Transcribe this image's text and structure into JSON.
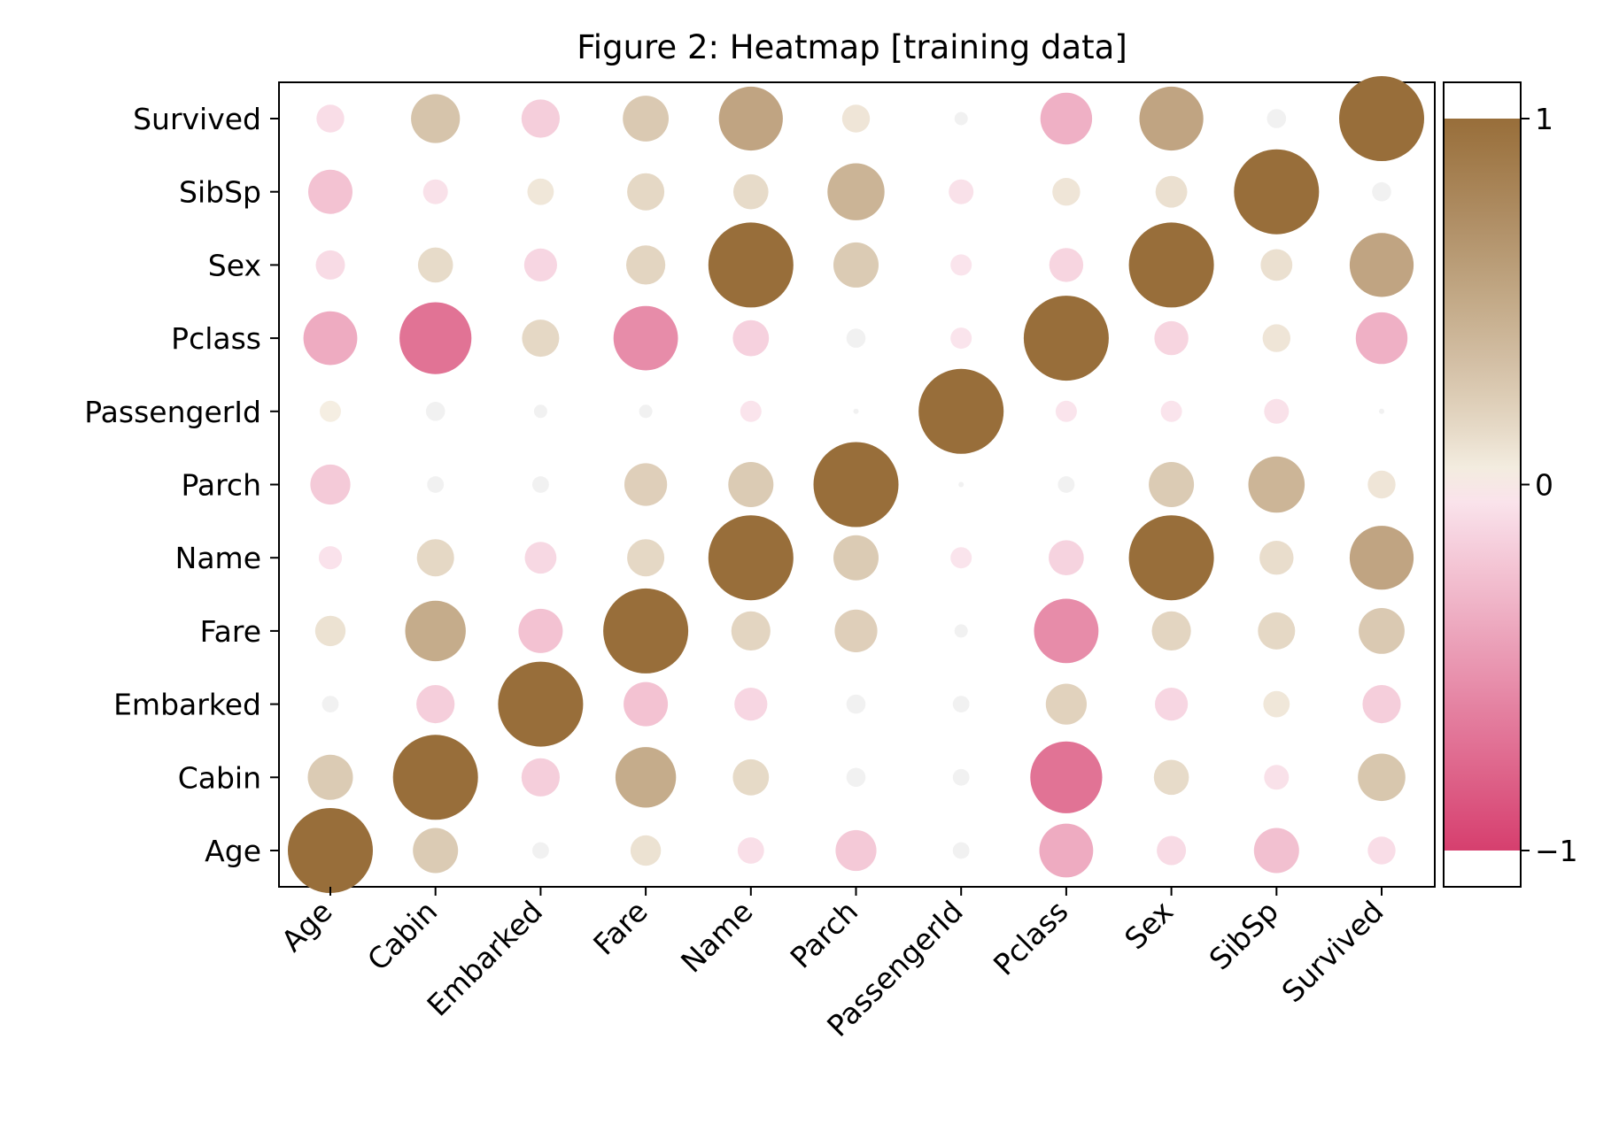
{
  "chart_data": {
    "type": "heatmap",
    "title": "Figure 2:  Heatmap [training data]",
    "xlabel": "",
    "ylabel": "",
    "x_categories": [
      "Age",
      "Cabin",
      "Embarked",
      "Fare",
      "Name",
      "Parch",
      "PassengerId",
      "Pclass",
      "Sex",
      "SibSp",
      "Survived"
    ],
    "y_categories": [
      "Age",
      "Cabin",
      "Embarked",
      "Fare",
      "Name",
      "Parch",
      "PassengerId",
      "Pclass",
      "Sex",
      "SibSp",
      "Survived"
    ],
    "values": [
      [
        1.0,
        0.25,
        0.02,
        0.1,
        -0.07,
        -0.2,
        0.02,
        -0.37,
        -0.09,
        -0.25,
        -0.08
      ],
      [
        0.25,
        1.0,
        -0.17,
        0.48,
        0.15,
        0.03,
        0.02,
        -0.7,
        0.14,
        -0.06,
        0.28
      ],
      [
        0.02,
        -0.17,
        1.0,
        -0.24,
        -0.12,
        0.03,
        0.02,
        0.2,
        -0.12,
        0.07,
        -0.17
      ],
      [
        0.1,
        0.48,
        -0.24,
        1.0,
        0.18,
        0.22,
        0.01,
        -0.55,
        0.18,
        0.16,
        0.26
      ],
      [
        -0.05,
        0.16,
        -0.11,
        0.16,
        1.0,
        0.25,
        -0.04,
        -0.14,
        1.0,
        0.13,
        0.54
      ],
      [
        -0.19,
        0.02,
        0.02,
        0.22,
        0.25,
        1.0,
        0.0,
        0.02,
        0.25,
        0.41,
        0.08
      ],
      [
        0.04,
        0.03,
        0.01,
        0.01,
        -0.04,
        0.0,
        1.0,
        -0.04,
        -0.04,
        -0.06,
        0.0
      ],
      [
        -0.37,
        -0.7,
        0.16,
        -0.55,
        -0.15,
        0.03,
        -0.04,
        1.0,
        -0.13,
        0.08,
        -0.34
      ],
      [
        -0.09,
        0.14,
        -0.12,
        0.18,
        1.0,
        0.25,
        -0.04,
        -0.13,
        1.0,
        0.11,
        0.54
      ],
      [
        -0.24,
        -0.06,
        0.07,
        0.16,
        0.14,
        0.42,
        -0.06,
        0.08,
        0.11,
        1.0,
        -0.03
      ],
      [
        -0.08,
        0.3,
        -0.17,
        0.26,
        0.54,
        0.08,
        -0.01,
        -0.34,
        0.54,
        -0.03,
        1.0
      ]
    ],
    "colorbar": {
      "min": -1,
      "max": 1,
      "ticks": [
        1,
        0,
        -1
      ],
      "tick_labels": [
        "1",
        "0",
        "−1"
      ],
      "colors": {
        "negative": "#d63f6e",
        "mid": "#f1f1f1",
        "positive": "#986e3a"
      }
    },
    "marker": "circle-size-and-color",
    "grid": false,
    "legend": "colorbar-right"
  }
}
